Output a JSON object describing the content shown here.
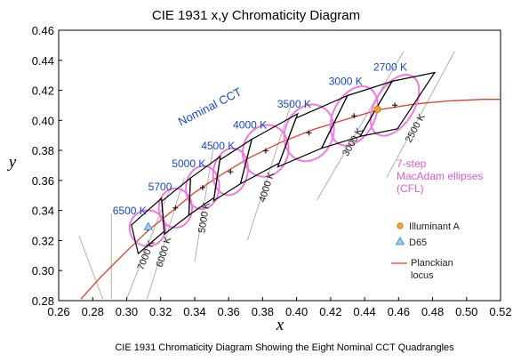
{
  "chart_data": {
    "type": "scatter",
    "title": "CIE 1931  x,y Chromaticity Diagram",
    "caption": "CIE 1931 Chromaticity Diagram Showing the Eight Nominal CCT Quadrangles",
    "xlabel": "x",
    "ylabel": "y",
    "xlim": [
      0.26,
      0.52
    ],
    "ylim": [
      0.28,
      0.46
    ],
    "xticks": [
      0.26,
      0.28,
      0.3,
      0.32,
      0.34,
      0.36,
      0.38,
      0.4,
      0.42,
      0.44,
      0.46,
      0.48,
      0.5,
      0.52
    ],
    "yticks": [
      0.28,
      0.3,
      0.32,
      0.34,
      0.36,
      0.38,
      0.4,
      0.42,
      0.44,
      0.46
    ],
    "grid": false,
    "nominal_cct_label": "Nominal CCT",
    "ellipse_label_lines": [
      "7-step",
      "MacAdam ellipses",
      "(CFL)"
    ],
    "planckian_locus": [
      [
        0.273,
        0.281
      ],
      [
        0.285,
        0.296
      ],
      [
        0.3,
        0.313
      ],
      [
        0.312,
        0.326
      ],
      [
        0.325,
        0.338
      ],
      [
        0.34,
        0.352
      ],
      [
        0.356,
        0.364
      ],
      [
        0.372,
        0.375
      ],
      [
        0.39,
        0.385
      ],
      [
        0.41,
        0.394
      ],
      [
        0.43,
        0.401
      ],
      [
        0.448,
        0.407
      ],
      [
        0.47,
        0.411
      ],
      [
        0.49,
        0.413
      ],
      [
        0.51,
        0.414
      ],
      [
        0.52,
        0.414
      ]
    ],
    "quadrangles": [
      {
        "label": "6500 K",
        "center": [
          0.3123,
          0.3282
        ],
        "corners": [
          [
            0.3028,
            0.3304
          ],
          [
            0.3205,
            0.3481
          ],
          [
            0.3221,
            0.3261
          ],
          [
            0.3068,
            0.3113
          ]
        ]
      },
      {
        "label": "5700",
        "center": [
          0.3287,
          0.3417
        ],
        "corners": [
          [
            0.3207,
            0.3462
          ],
          [
            0.3376,
            0.3616
          ],
          [
            0.3366,
            0.3369
          ],
          [
            0.3222,
            0.3243
          ]
        ]
      },
      {
        "label": "5000 K",
        "center": [
          0.3447,
          0.3553
        ],
        "corners": [
          [
            0.3376,
            0.3616
          ],
          [
            0.3551,
            0.376
          ],
          [
            0.3515,
            0.3487
          ],
          [
            0.3366,
            0.3369
          ]
        ]
      },
      {
        "label": "4500 K",
        "center": [
          0.3611,
          0.3658
        ],
        "corners": [
          [
            0.3548,
            0.3736
          ],
          [
            0.3736,
            0.3874
          ],
          [
            0.367,
            0.3578
          ],
          [
            0.3512,
            0.3465
          ]
        ]
      },
      {
        "label": "4000 K",
        "center": [
          0.3818,
          0.3797
        ],
        "corners": [
          [
            0.3736,
            0.3874
          ],
          [
            0.4006,
            0.4044
          ],
          [
            0.3898,
            0.3716
          ],
          [
            0.367,
            0.3578
          ]
        ]
      },
      {
        "label": "3500 K",
        "center": [
          0.4073,
          0.3917
        ],
        "corners": [
          [
            0.3996,
            0.4015
          ],
          [
            0.4299,
            0.4165
          ],
          [
            0.4147,
            0.3814
          ],
          [
            0.3889,
            0.369
          ]
        ]
      },
      {
        "label": "3000 K",
        "center": [
          0.4338,
          0.403
        ],
        "corners": [
          [
            0.4299,
            0.4165
          ],
          [
            0.4562,
            0.426
          ],
          [
            0.4373,
            0.3893
          ],
          [
            0.4147,
            0.3814
          ]
        ]
      },
      {
        "label": "2700 K",
        "center": [
          0.4578,
          0.4101
        ],
        "corners": [
          [
            0.4562,
            0.426
          ],
          [
            0.4813,
            0.4319
          ],
          [
            0.4593,
            0.3944
          ],
          [
            0.4373,
            0.3893
          ]
        ]
      }
    ],
    "isotemperature_lines": [
      {
        "label": "7000 K",
        "from": [
          0.326,
          0.356
        ],
        "to": [
          0.3,
          0.281
        ]
      },
      {
        "label": "6000 K",
        "from": [
          0.334,
          0.362
        ],
        "to": [
          0.312,
          0.281
        ]
      },
      {
        "label": "5000 K",
        "from": [
          0.351,
          0.382
        ],
        "to": [
          0.34,
          0.306
        ]
      },
      {
        "label": "4000 K",
        "from": [
          0.397,
          0.412
        ],
        "to": [
          0.371,
          0.32
        ]
      },
      {
        "label": "3000 K",
        "from": [
          0.463,
          0.446
        ],
        "to": [
          0.412,
          0.347
        ]
      },
      {
        "label": "2500 K",
        "from": [
          0.493,
          0.446
        ],
        "to": [
          0.453,
          0.362
        ]
      }
    ],
    "extra_gray_lines": [
      {
        "from": [
          0.291,
          0.338
        ],
        "to": [
          0.291,
          0.281
        ]
      },
      {
        "from": [
          0.272,
          0.323
        ],
        "to": [
          0.286,
          0.281
        ]
      }
    ],
    "illuminant_a": {
      "label": "Illuminant A",
      "x": 0.4476,
      "y": 0.4074,
      "color": "#f5a623"
    },
    "d65": {
      "label": "D65",
      "x": 0.3127,
      "y": 0.329,
      "color": "#8fd1f5"
    },
    "legend": {
      "illuminant_a": "Illuminant A",
      "d65": "D65",
      "planckian_lines": [
        "Planckian",
        "locus"
      ]
    },
    "colors": {
      "quadrangle": "#000000",
      "ellipse": "#f07ae0",
      "locus": "#e0402a",
      "iso_line": "#b0b0b0",
      "cct_label": "#1447c8"
    }
  }
}
